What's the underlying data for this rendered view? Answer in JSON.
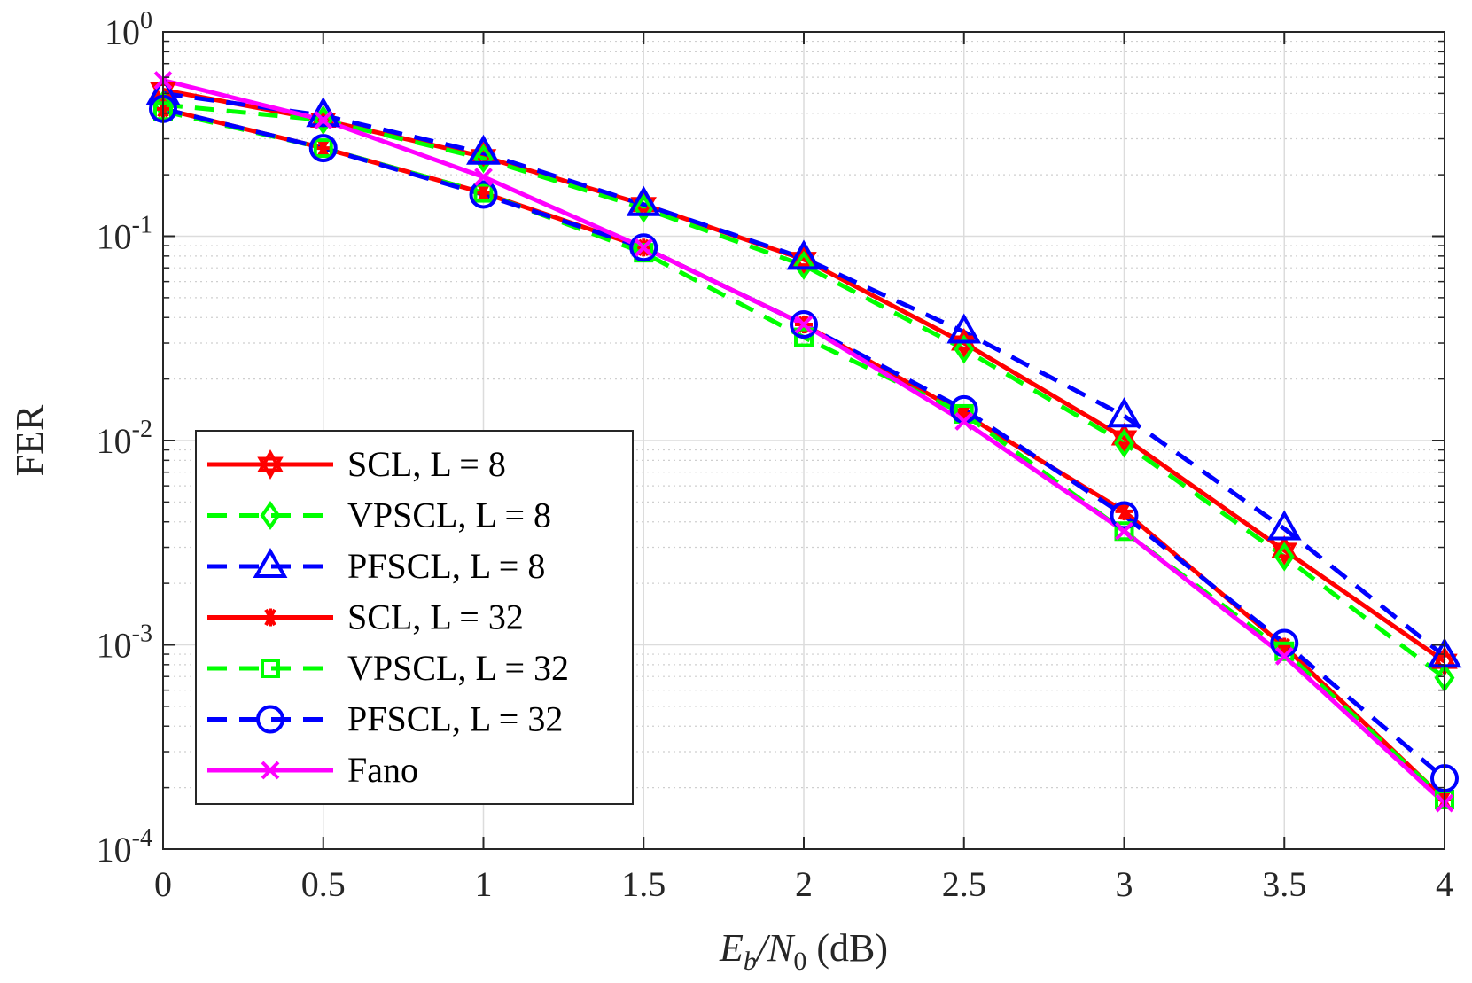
{
  "chart_data": {
    "type": "line",
    "yscale": "log",
    "xlabel": {
      "main": "E",
      "sub_b": "b",
      "slash_N": "/N",
      "sub_0": "0",
      "units": " (dB)"
    },
    "ylabel": "FER",
    "xlim": [
      0,
      4
    ],
    "ylim": [
      0.0001,
      1
    ],
    "x_ticks": [
      0,
      0.5,
      1,
      1.5,
      2,
      2.5,
      3,
      3.5,
      4
    ],
    "x_tick_labels": [
      "0",
      "0.5",
      "1",
      "1.5",
      "2",
      "2.5",
      "3",
      "3.5",
      "4"
    ],
    "y_tick_labels": [
      {
        "base": "10",
        "exp": "0"
      },
      {
        "base": "10",
        "exp": "-1"
      },
      {
        "base": "10",
        "exp": "-2"
      },
      {
        "base": "10",
        "exp": "-3"
      },
      {
        "base": "10",
        "exp": "-4"
      }
    ],
    "grid": true,
    "legend_position": "bottom-left",
    "x": [
      0,
      0.5,
      1,
      1.5,
      2,
      2.5,
      3,
      3.5,
      4
    ],
    "series": [
      {
        "name": "SCL, L = 8",
        "color": "#ff0000",
        "dash": "solid",
        "marker": "hexagram",
        "values": [
          0.52,
          0.37,
          0.245,
          0.143,
          0.077,
          0.03,
          0.0103,
          0.0029,
          0.00083
        ]
      },
      {
        "name": "VPSCL, L = 8",
        "color": "#00ff00",
        "dash": "dashed",
        "marker": "diamond",
        "values": [
          0.44,
          0.37,
          0.24,
          0.137,
          0.072,
          0.028,
          0.0097,
          0.0027,
          0.00069
        ]
      },
      {
        "name": "PFSCL, L = 8",
        "color": "#0000ff",
        "dash": "dashed",
        "marker": "triangle",
        "values": [
          0.5,
          0.39,
          0.255,
          0.143,
          0.078,
          0.034,
          0.0132,
          0.0037,
          0.00088
        ]
      },
      {
        "name": "SCL, L = 32",
        "color": "#ff0000",
        "dash": "solid",
        "marker": "asterisk",
        "values": [
          0.42,
          0.27,
          0.163,
          0.088,
          0.037,
          0.0135,
          0.0045,
          0.00098,
          0.000175
        ]
      },
      {
        "name": "VPSCL, L = 32",
        "color": "#00ff00",
        "dash": "dashed",
        "marker": "square",
        "values": [
          0.41,
          0.27,
          0.163,
          0.083,
          0.032,
          0.0135,
          0.0036,
          0.00093,
          0.000175
        ]
      },
      {
        "name": "PFSCL, L = 32",
        "color": "#0000ff",
        "dash": "dashed",
        "marker": "circle",
        "values": [
          0.42,
          0.27,
          0.16,
          0.088,
          0.037,
          0.0142,
          0.0043,
          0.00102,
          0.000222
        ]
      },
      {
        "name": "Fano",
        "color": "#ff00ff",
        "dash": "solid",
        "marker": "x",
        "values": [
          0.58,
          0.37,
          0.195,
          0.088,
          0.037,
          0.0124,
          0.0036,
          0.00088,
          0.000168
        ]
      }
    ]
  }
}
